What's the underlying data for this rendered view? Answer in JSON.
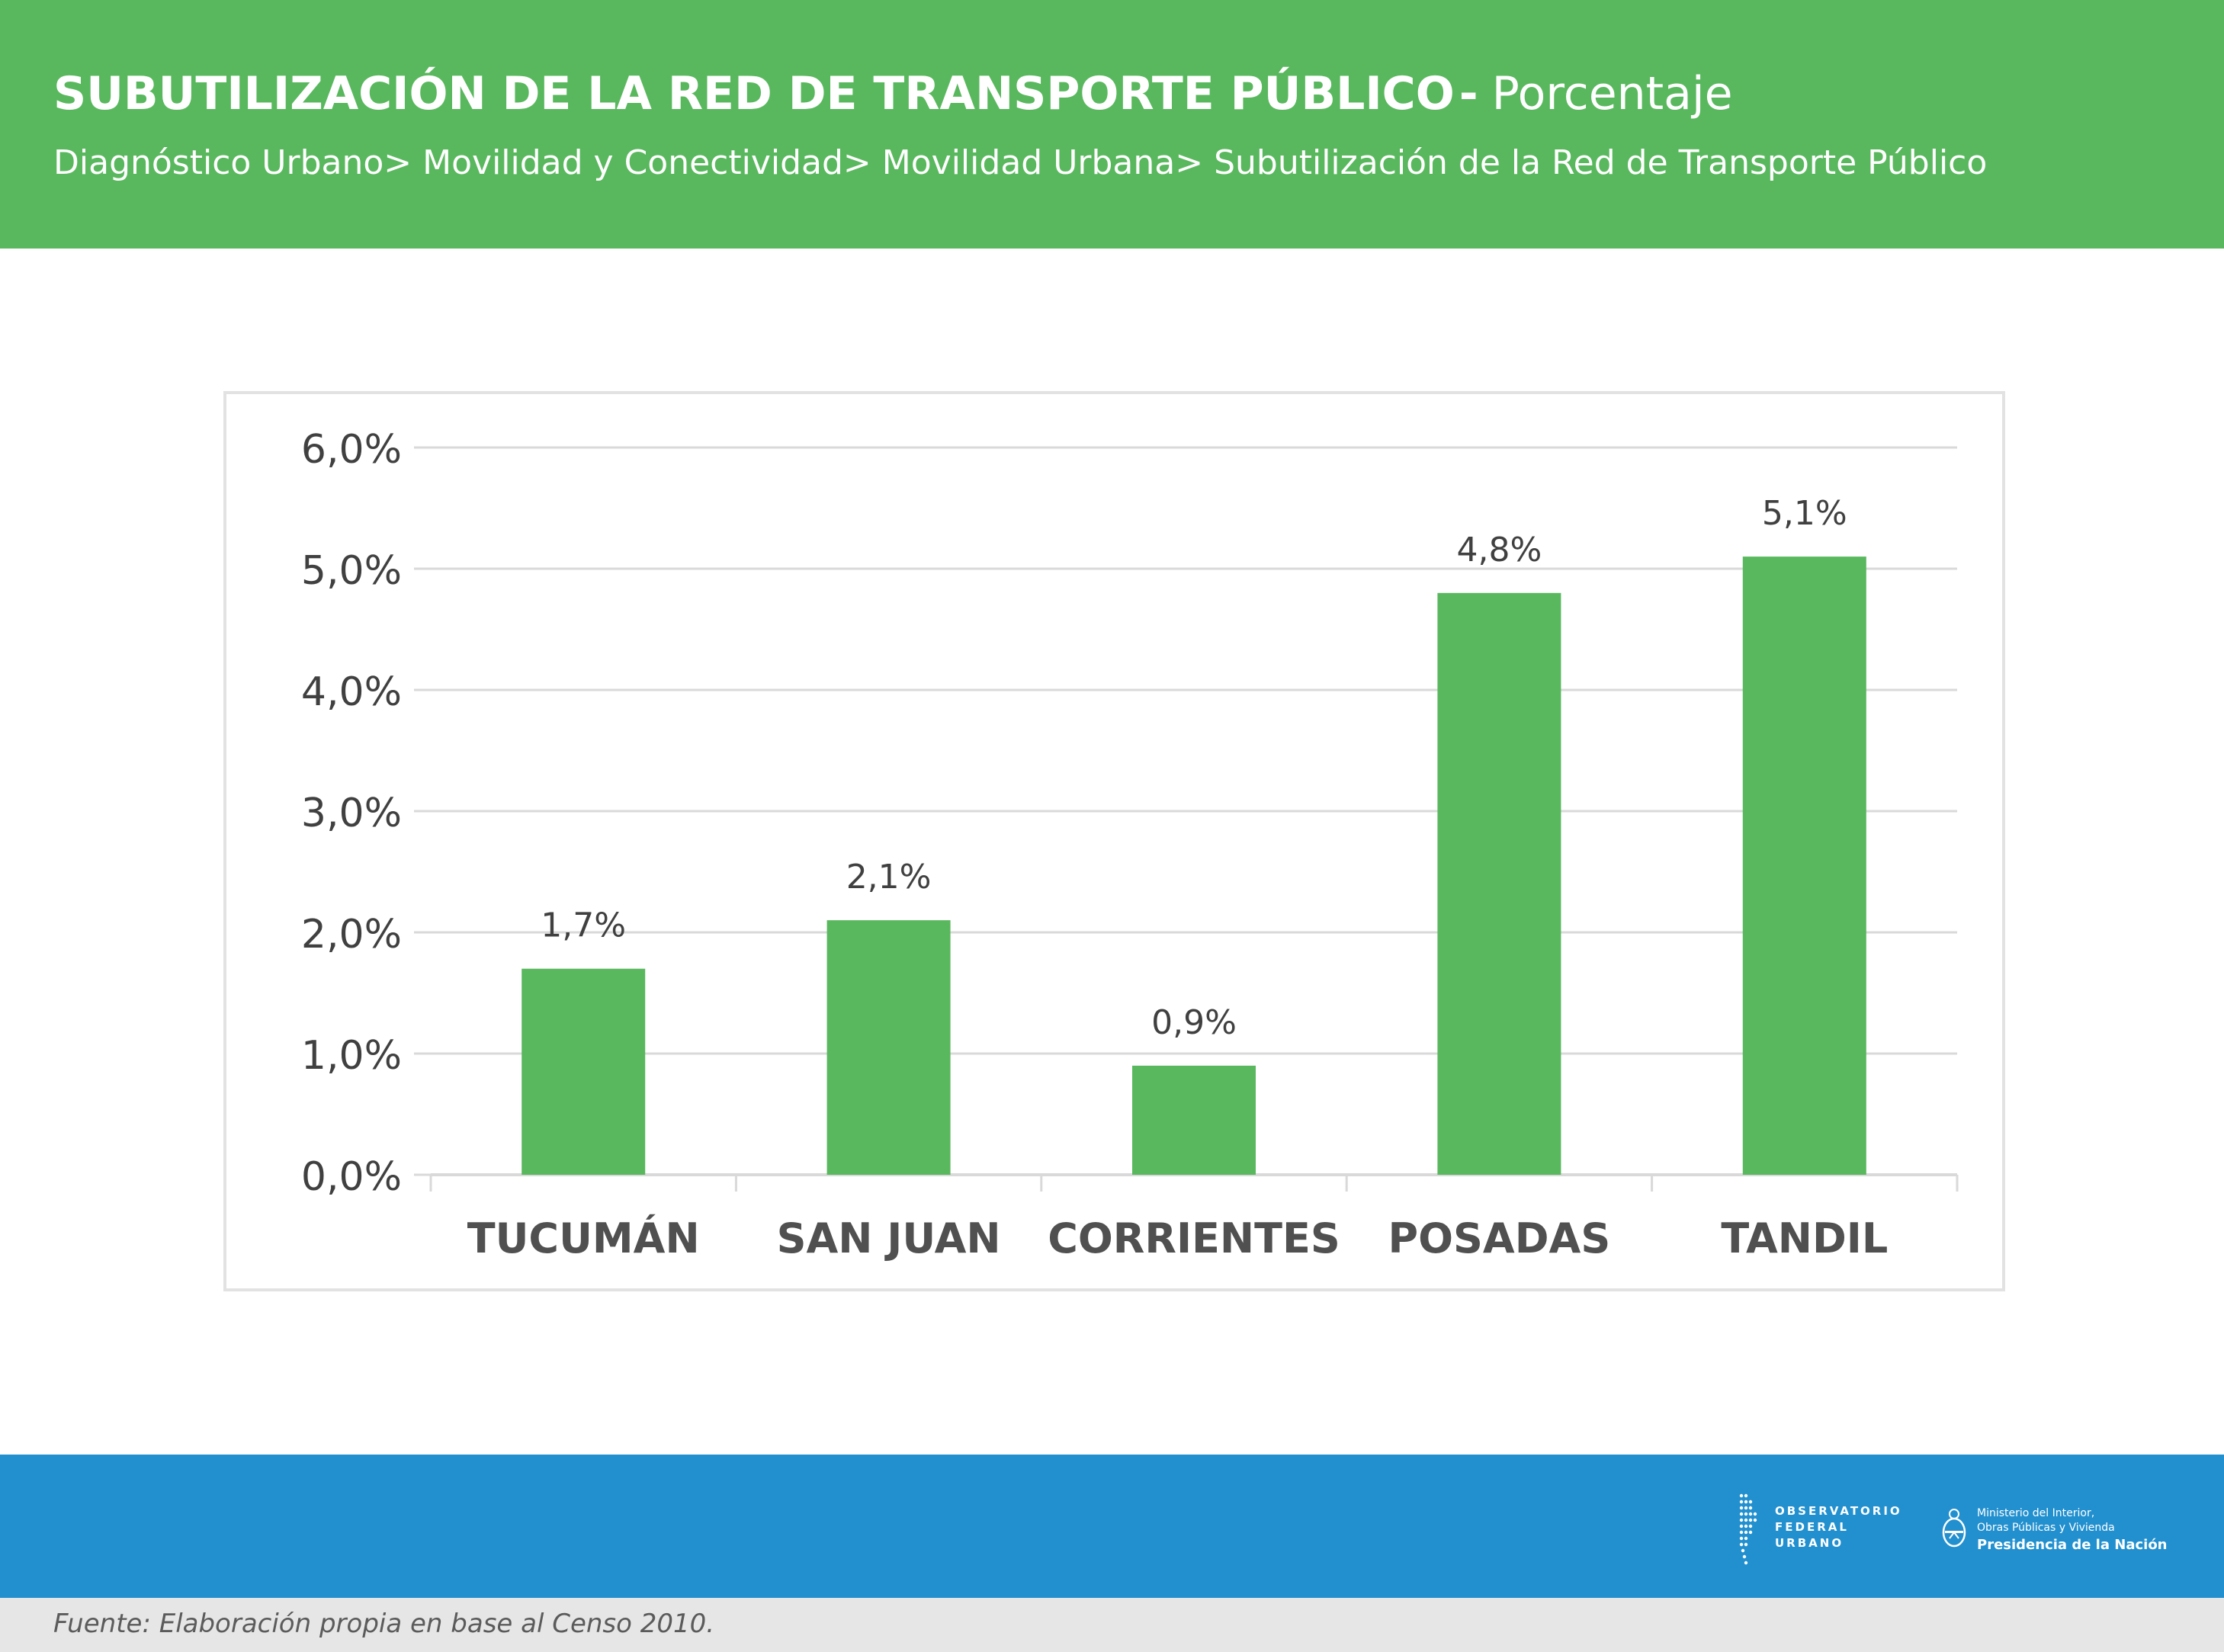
{
  "header": {
    "title": "SUBUTILIZACIÓN DE LA RED DE TRANSPORTE PÚBLICO",
    "separator": "-",
    "unit": "Porcentaje",
    "breadcrumb": "Diagnóstico Urbano> Movilidad y Conectividad> Movilidad Urbana> Subutilización de la Red de Transporte Público"
  },
  "chart_data": {
    "type": "bar",
    "categories": [
      "TUCUMÁN",
      "SAN JUAN",
      "CORRIENTES",
      "POSADAS",
      "TANDIL"
    ],
    "values": [
      1.7,
      2.1,
      0.9,
      4.8,
      5.1
    ],
    "data_labels": [
      "1,7%",
      "2,1%",
      "0,9%",
      "4,8%",
      "5,1%"
    ],
    "y_ticks": [
      0,
      1,
      2,
      3,
      4,
      5,
      6
    ],
    "y_tick_labels": [
      "0,0%",
      "1,0%",
      "2,0%",
      "3,0%",
      "4,0%",
      "5,0%",
      "6,0%"
    ],
    "ylim": [
      0,
      6
    ],
    "grid": true,
    "legend": "none",
    "bar_color": "#59b85e"
  },
  "footer": {
    "logos": {
      "observatorio": [
        "OBSERVATORIO",
        "FEDERAL",
        "URBANO"
      ],
      "ministerio": [
        "Ministerio del Interior,",
        "Obras Públicas y Vivienda",
        "Presidencia de la Nación"
      ]
    },
    "source": "Fuente: Elaboración propia en base al Censo 2010."
  },
  "colors": {
    "header_bg": "#59b85e",
    "footer_bg": "#2290cf",
    "source_bg": "#e6e6e6",
    "text": "#404040",
    "grid": "#d9d9d9"
  }
}
